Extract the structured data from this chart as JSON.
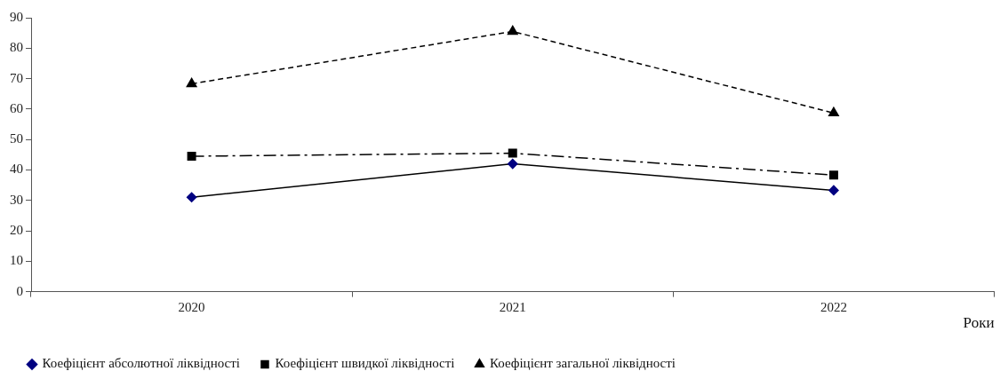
{
  "chart_data": {
    "type": "line",
    "xlabel": "Роки",
    "categories": [
      "2020",
      "2021",
      "2022"
    ],
    "series": [
      {
        "name": "Коефіцієнт абсолютної ліквідності",
        "color": "#000080",
        "values": [
          31,
          42,
          33.3
        ],
        "marker": "diamond",
        "line_style": "solid"
      },
      {
        "name": "Коефіцієнт швидкої ліквідності",
        "color": "#000000",
        "values": [
          44.5,
          45.5,
          38.3
        ],
        "marker": "square",
        "line_style": "dashdot"
      },
      {
        "name": "Коефіцієнт загальної ліквідності",
        "color": "#000000",
        "values": [
          68.3,
          85.5,
          58.7
        ],
        "marker": "triangle",
        "line_style": "dashed"
      }
    ],
    "ylim": [
      0,
      90
    ],
    "yticks": [
      0,
      10,
      20,
      30,
      40,
      50,
      60,
      70,
      80,
      90
    ],
    "grid": false,
    "legend": "bottom"
  }
}
